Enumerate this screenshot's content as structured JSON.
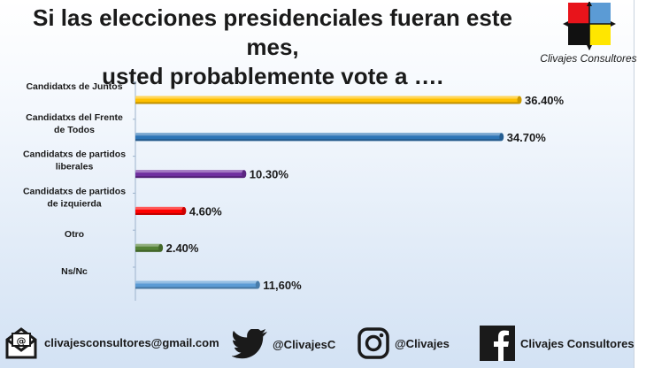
{
  "title_line1": "Si las elecciones presidenciales fueran este mes,",
  "title_line2": "usted probablemente vote a ….",
  "logo": {
    "text": "Clivajes Consultores",
    "colors": [
      "#e8141b",
      "#5b9bd5",
      "#111111",
      "#ffe600"
    ]
  },
  "chart_data": {
    "type": "bar",
    "orientation": "horizontal",
    "categories": [
      [
        "Candidatxs de Juntos"
      ],
      [
        "Candidatxs del Frente",
        "de Todos"
      ],
      [
        "Candidatxs de partidos",
        "liberales"
      ],
      [
        "Candidatxs de partidos",
        "de izquierda"
      ],
      [
        "Otro"
      ],
      [
        "Ns/Nc"
      ]
    ],
    "values": [
      36.4,
      34.7,
      10.3,
      4.6,
      2.4,
      11.6
    ],
    "value_labels": [
      "36.40%",
      "34.70%",
      "10.30%",
      "4.60%",
      "2.40%",
      "11,60%"
    ],
    "colors": [
      "#ffc000",
      "#2e75b6",
      "#7030a0",
      "#ff0000",
      "#548235",
      "#5b9bd5"
    ],
    "xlim": [
      0,
      36.4
    ],
    "grid": false,
    "legend": "none"
  },
  "footer": {
    "email": "clivajesconsultores@gmail.com",
    "twitter": "@ClivajesC",
    "instagram": "@Clivajes",
    "facebook": "Clivajes Consultores"
  }
}
